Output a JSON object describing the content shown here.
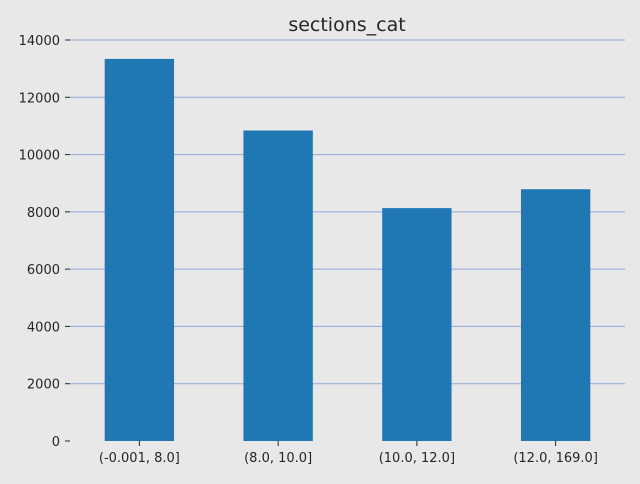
{
  "chart_data": {
    "type": "bar",
    "title": "sections_cat",
    "xlabel": "",
    "ylabel": "",
    "categories": [
      "(-0.001, 8.0]",
      "(8.0, 10.0]",
      "(10.0, 12.0]",
      "(12.0, 169.0]"
    ],
    "values": [
      13340,
      10840,
      8130,
      8790
    ],
    "ylim": [
      0,
      14000
    ],
    "yticks": [
      0,
      2000,
      4000,
      6000,
      8000,
      10000,
      12000,
      14000
    ],
    "grid": "horizontal",
    "legend": "none",
    "colors": {
      "bar": "#1f77b4",
      "grid": "#8fa8d8",
      "background": "#e8e8e8",
      "text": "#262626"
    }
  }
}
